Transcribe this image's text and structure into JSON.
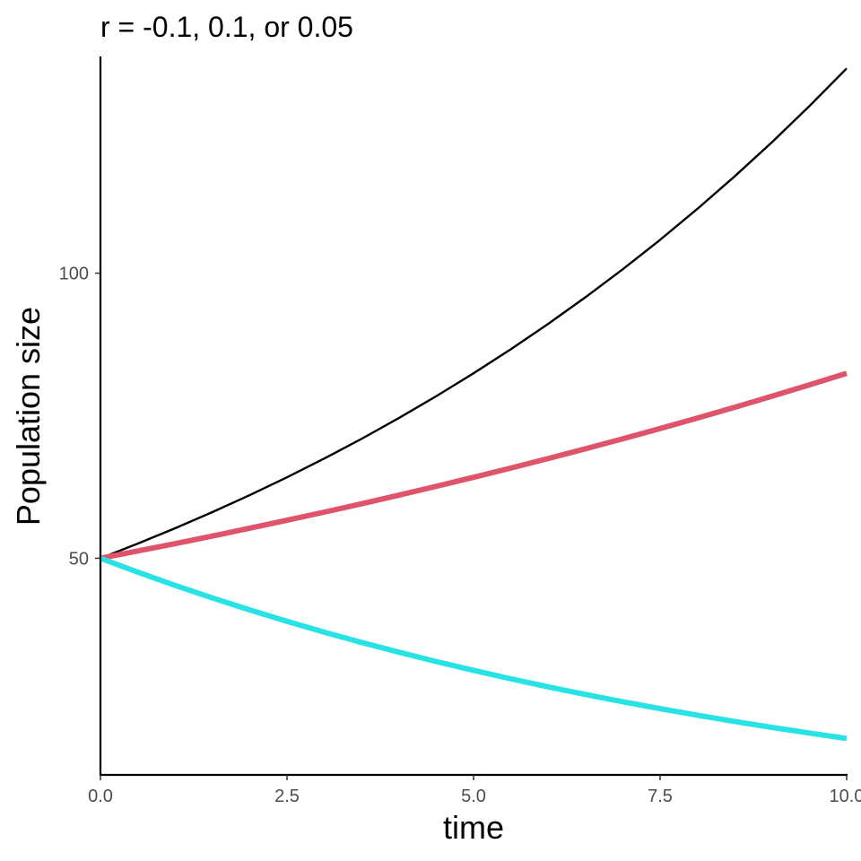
{
  "chart_data": {
    "type": "line",
    "title": "r = -0.1, 0.1, or 0.05",
    "xlabel": "time",
    "ylabel": "Population size",
    "xlim": [
      0,
      10
    ],
    "ylim": [
      12,
      138
    ],
    "x_ticks": [
      {
        "value": 0,
        "label": "0.0"
      },
      {
        "value": 2.5,
        "label": "2.5"
      },
      {
        "value": 5,
        "label": "5.0"
      },
      {
        "value": 7.5,
        "label": "7.5"
      },
      {
        "value": 10,
        "label": "10.0"
      }
    ],
    "y_ticks": [
      {
        "value": 50,
        "label": "50"
      },
      {
        "value": 100,
        "label": "100"
      }
    ],
    "grid": false,
    "legend": "none",
    "series": [
      {
        "color": "#000000",
        "line_weight": "thin",
        "x": [
          0,
          0.5,
          1,
          1.5,
          2,
          2.5,
          3,
          3.5,
          4,
          4.5,
          5,
          5.5,
          6,
          6.5,
          7,
          7.5,
          8,
          8.5,
          9,
          9.5,
          10
        ],
        "y": [
          50,
          52.56,
          55.26,
          58.09,
          61.07,
          64.2,
          67.49,
          70.95,
          74.59,
          78.42,
          82.44,
          86.66,
          91.11,
          95.78,
          100.69,
          105.85,
          111.28,
          116.99,
          122.98,
          129.29,
          135.91
        ]
      },
      {
        "color": "#DF536B",
        "line_weight": "thick",
        "x": [
          0,
          0.5,
          1,
          1.5,
          2,
          2.5,
          3,
          3.5,
          4,
          4.5,
          5,
          5.5,
          6,
          6.5,
          7,
          7.5,
          8,
          8.5,
          9,
          9.5,
          10
        ],
        "y": [
          50,
          51.27,
          52.56,
          53.89,
          55.26,
          56.66,
          58.09,
          59.56,
          61.07,
          62.61,
          64.2,
          65.82,
          67.49,
          69.2,
          70.95,
          72.75,
          74.59,
          76.48,
          78.42,
          80.4,
          82.44
        ]
      },
      {
        "color": "#28E2E5",
        "line_weight": "thick",
        "x": [
          0,
          0.5,
          1,
          1.5,
          2,
          2.5,
          3,
          3.5,
          4,
          4.5,
          5,
          5.5,
          6,
          6.5,
          7,
          7.5,
          8,
          8.5,
          9,
          9.5,
          10
        ],
        "y": [
          50,
          47.56,
          45.24,
          43.04,
          40.94,
          38.94,
          37.04,
          35.23,
          33.52,
          31.88,
          30.33,
          28.85,
          27.44,
          26.1,
          24.83,
          23.62,
          22.47,
          21.37,
          20.33,
          19.34,
          18.39
        ]
      }
    ]
  }
}
